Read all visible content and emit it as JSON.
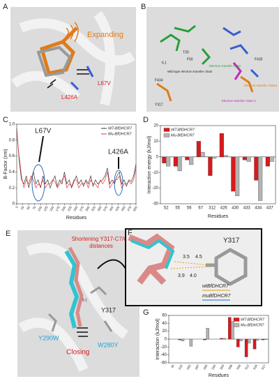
{
  "panels": {
    "a": {
      "label": "A",
      "annotations": [
        "Expanding",
        "L426A",
        "L67V"
      ]
    },
    "b": {
      "label": "B",
      "annotations": [
        "Wild type electron transfer chain",
        "Electron transfer chain",
        "Electron transfer chain1",
        "Electron transfer chain 2",
        "F434",
        "Y317",
        "F56",
        "T30",
        "F430",
        "6.1"
      ]
    },
    "c": {
      "label": "C",
      "annotations": [
        "L67V",
        "L426A"
      ]
    },
    "d": {
      "label": "D"
    },
    "e": {
      "label": "E",
      "annotations": [
        "Shortening Y317-C7/C8 distances",
        "Y317",
        "Y290W",
        "W280Y",
        "Closing",
        "6.1"
      ]
    },
    "f": {
      "label": "F",
      "annotations": [
        "Y317",
        "3.5",
        "4.5",
        "3.9",
        "4.0",
        "wtBfDHCR7",
        "muBfDHCR7"
      ]
    },
    "g": {
      "label": "G"
    }
  },
  "chart_data": [
    {
      "type": "line",
      "xlabel": "Residues",
      "ylabel": "B-Factor (nm)",
      "x": [
        0,
        10,
        20,
        30,
        40,
        50,
        60,
        70,
        80,
        90,
        100,
        110,
        120,
        130,
        140,
        150,
        160,
        170,
        180,
        190,
        200,
        210,
        220,
        230,
        240,
        250,
        260,
        270,
        280,
        290,
        300,
        310,
        320,
        330,
        340,
        350,
        360,
        370,
        380,
        390,
        400,
        410,
        420,
        430,
        440,
        450,
        460,
        470,
        480,
        490,
        500
      ],
      "series": [
        {
          "name": "WT-BfDHCR7",
          "color": "#333333",
          "values": [
            0.95,
            0.55,
            0.3,
            0.25,
            0.35,
            0.2,
            0.3,
            0.4,
            0.25,
            0.3,
            0.2,
            0.35,
            0.25,
            0.3,
            0.2,
            0.28,
            0.35,
            0.22,
            0.3,
            0.25,
            0.4,
            0.25,
            0.3,
            0.2,
            0.28,
            0.35,
            0.25,
            0.3,
            0.22,
            0.3,
            0.25,
            0.35,
            0.22,
            0.3,
            0.25,
            0.28,
            0.3,
            0.35,
            0.45,
            0.25,
            0.3,
            0.25,
            0.35,
            0.4,
            0.25,
            0.3,
            0.22,
            0.3,
            0.28,
            0.35,
            0.5
          ]
        },
        {
          "name": "Mu-BfDHCR7",
          "color": "#e8312f",
          "values": [
            0.9,
            0.6,
            0.35,
            0.2,
            0.3,
            0.25,
            0.35,
            0.3,
            0.2,
            0.25,
            0.22,
            0.3,
            0.2,
            0.25,
            0.25,
            0.3,
            0.28,
            0.2,
            0.25,
            0.3,
            0.35,
            0.2,
            0.25,
            0.22,
            0.3,
            0.3,
            0.2,
            0.25,
            0.25,
            0.28,
            0.2,
            0.3,
            0.25,
            0.25,
            0.2,
            0.3,
            0.25,
            0.3,
            0.4,
            0.2,
            0.25,
            0.3,
            0.3,
            0.35,
            0.2,
            0.25,
            0.25,
            0.28,
            0.25,
            0.3,
            0.45
          ]
        }
      ],
      "xlim": [
        0,
        500
      ],
      "xticks": [
        0,
        25,
        50,
        75,
        100,
        125,
        150,
        175,
        200,
        225,
        250,
        275,
        300,
        325,
        350,
        375,
        400,
        425,
        450,
        475,
        500
      ],
      "ylim": [
        0,
        1
      ],
      "yticks": [
        0,
        0.2,
        0.4,
        0.6,
        0.8,
        {
          "value": 1,
          "label": "1.0"
        }
      ],
      "legend": "top-right"
    },
    {
      "type": "bar",
      "xlabel": "Residues",
      "ylabel": "Interaction energy (kJ/mol)",
      "categories": [
        "52",
        "55",
        "56",
        "67",
        "312",
        "426",
        "430",
        "433",
        "434",
        "437"
      ],
      "series": [
        {
          "name": "WT-BfDHCR7",
          "color": "#d9191c",
          "values": [
            -4,
            -6,
            -2,
            10,
            -12,
            15,
            -22,
            -2,
            -15,
            -6
          ]
        },
        {
          "name": "Mu-BfDHCR7",
          "color": "#b3b3b3",
          "values": [
            -6,
            -9,
            -5,
            3,
            -1,
            1,
            -25,
            -3,
            -28,
            -3
          ]
        }
      ],
      "ylim": [
        -30,
        20
      ],
      "yticks": [
        -30,
        -20,
        -10,
        0,
        10,
        20
      ],
      "legend": "top-left"
    },
    {
      "type": "bar",
      "xlabel": "Residues",
      "ylabel": "Interaction (kJ/mol)",
      "categories": [
        "45",
        "219",
        "282",
        "287",
        "290",
        "294",
        "303",
        "306",
        "309",
        "312",
        "316",
        "317"
      ],
      "series": [
        {
          "name": "WT-BfDHCR7",
          "color": "#d9191c",
          "values": [
            0,
            -2,
            0,
            0,
            -2,
            0,
            2,
            55,
            -20,
            -45,
            -25,
            -2
          ]
        },
        {
          "name": "Mu-BfDHCR7",
          "color": "#b3b3b3",
          "values": [
            0,
            -5,
            -18,
            0,
            28,
            0,
            2,
            45,
            -5,
            -10,
            -3,
            -1
          ]
        }
      ],
      "ylim": [
        -60,
        60
      ],
      "yticks": [
        -60,
        -40,
        -20,
        0,
        20,
        40,
        60
      ],
      "legend": "top-right"
    }
  ]
}
